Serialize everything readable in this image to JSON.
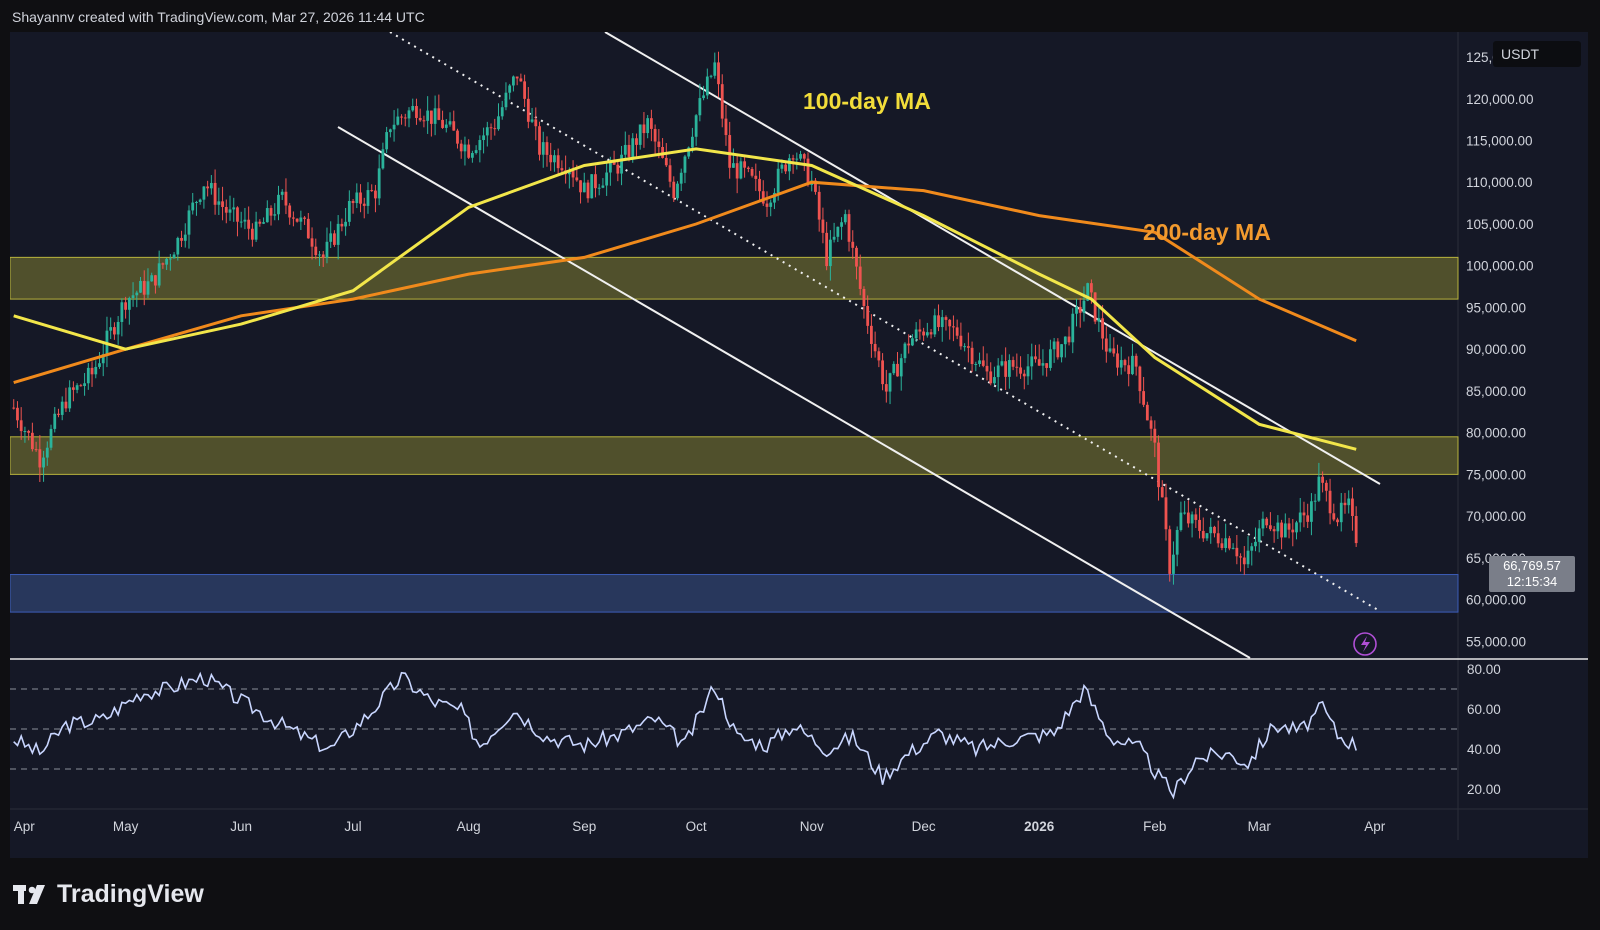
{
  "header": {
    "attribution": "Shayannv created with TradingView.com, Mar 27, 2026 11:44 UTC"
  },
  "chart_data": {
    "type": "candlestick",
    "symbol_currency": "USDT",
    "current_price": {
      "value": "66,769.57",
      "countdown": "12:15:34"
    },
    "y_axis": {
      "range": [
        53000,
        128000
      ],
      "ticks": [
        "125,000.00",
        "120,000.00",
        "115,000.00",
        "110,000.00",
        "105,000.00",
        "100,000.00",
        "95,000.00",
        "90,000.00",
        "85,000.00",
        "80,000.00",
        "75,000.00",
        "70,000.00",
        "65,000.00",
        "60,000.00",
        "55,000.00"
      ]
    },
    "x_axis": {
      "ticks": [
        "Apr",
        "May",
        "Jun",
        "Jul",
        "Aug",
        "Sep",
        "Oct",
        "Nov",
        "Dec",
        "2026",
        "Feb",
        "Mar",
        "Apr"
      ]
    },
    "price_path": [
      [
        "2025-04-01",
        83000
      ],
      [
        "2025-04-08",
        77000
      ],
      [
        "2025-04-15",
        84000
      ],
      [
        "2025-04-22",
        87000
      ],
      [
        "2025-05-01",
        96000
      ],
      [
        "2025-05-08",
        98000
      ],
      [
        "2025-05-15",
        103000
      ],
      [
        "2025-05-22",
        110000
      ],
      [
        "2025-05-29",
        106000
      ],
      [
        "2025-06-05",
        104000
      ],
      [
        "2025-06-12",
        108000
      ],
      [
        "2025-06-19",
        104000
      ],
      [
        "2025-06-23",
        101000
      ],
      [
        "2025-06-30",
        107000
      ],
      [
        "2025-07-07",
        109000
      ],
      [
        "2025-07-11",
        117000
      ],
      [
        "2025-07-18",
        119000
      ],
      [
        "2025-07-25",
        117000
      ],
      [
        "2025-08-01",
        114000
      ],
      [
        "2025-08-08",
        117000
      ],
      [
        "2025-08-14",
        123000
      ],
      [
        "2025-08-20",
        114000
      ],
      [
        "2025-08-28",
        112000
      ],
      [
        "2025-09-01",
        109000
      ],
      [
        "2025-09-10",
        112000
      ],
      [
        "2025-09-18",
        117000
      ],
      [
        "2025-09-25",
        109000
      ],
      [
        "2025-10-01",
        118000
      ],
      [
        "2025-10-06",
        124000
      ],
      [
        "2025-10-10",
        112000
      ],
      [
        "2025-10-14",
        111000
      ],
      [
        "2025-10-20",
        108000
      ],
      [
        "2025-10-27",
        114000
      ],
      [
        "2025-11-01",
        110000
      ],
      [
        "2025-11-05",
        101000
      ],
      [
        "2025-11-10",
        106000
      ],
      [
        "2025-11-15",
        95000
      ],
      [
        "2025-11-21",
        85000
      ],
      [
        "2025-11-27",
        91000
      ],
      [
        "2025-12-03",
        93000
      ],
      [
        "2025-12-10",
        92000
      ],
      [
        "2025-12-18",
        87000
      ],
      [
        "2025-12-25",
        88000
      ],
      [
        "2026-01-01",
        88000
      ],
      [
        "2026-01-08",
        91000
      ],
      [
        "2026-01-14",
        97000
      ],
      [
        "2026-01-20",
        89000
      ],
      [
        "2026-01-27",
        88000
      ],
      [
        "2026-02-01",
        78000
      ],
      [
        "2026-02-05",
        64000
      ],
      [
        "2026-02-08",
        70000
      ],
      [
        "2026-02-15",
        68000
      ],
      [
        "2026-02-22",
        67000
      ],
      [
        "2026-02-25",
        64000
      ],
      [
        "2026-03-03",
        70000
      ],
      [
        "2026-03-08",
        68000
      ],
      [
        "2026-03-15",
        71000
      ],
      [
        "2026-03-17",
        74000
      ],
      [
        "2026-03-22",
        70000
      ],
      [
        "2026-03-25",
        71000
      ],
      [
        "2026-03-27",
        66769.57
      ]
    ],
    "ma100": [
      [
        "2025-04-01",
        94000
      ],
      [
        "2025-05-01",
        90000
      ],
      [
        "2025-06-01",
        93000
      ],
      [
        "2025-07-01",
        97000
      ],
      [
        "2025-08-01",
        107000
      ],
      [
        "2025-09-01",
        112000
      ],
      [
        "2025-10-01",
        114000
      ],
      [
        "2025-11-01",
        112000
      ],
      [
        "2025-12-01",
        106000
      ],
      [
        "2026-01-01",
        99000
      ],
      [
        "2026-01-15",
        96000
      ],
      [
        "2026-02-01",
        89000
      ],
      [
        "2026-03-01",
        81000
      ],
      [
        "2026-03-27",
        78000
      ]
    ],
    "ma200": [
      [
        "2025-04-01",
        86000
      ],
      [
        "2025-05-01",
        90000
      ],
      [
        "2025-06-01",
        94000
      ],
      [
        "2025-07-01",
        96000
      ],
      [
        "2025-08-01",
        99000
      ],
      [
        "2025-09-01",
        101000
      ],
      [
        "2025-10-01",
        105000
      ],
      [
        "2025-11-01",
        110000
      ],
      [
        "2025-12-01",
        109000
      ],
      [
        "2026-01-01",
        106000
      ],
      [
        "2026-02-01",
        104000
      ],
      [
        "2026-03-01",
        96000
      ],
      [
        "2026-03-27",
        91000
      ]
    ],
    "zones": [
      {
        "from": 96000,
        "to": 101000,
        "color": "#5b5b2e"
      },
      {
        "from": 75000,
        "to": 79500,
        "color": "#5b5b2e"
      },
      {
        "from": 58500,
        "to": 63000,
        "color": "#2c3d66"
      }
    ],
    "annotations": [
      {
        "text": "100-day MA",
        "color": "#f2dd3a"
      },
      {
        "text": "200-day MA",
        "color": "#f29a2e"
      }
    ],
    "rsi": {
      "ticks": [
        "80.00",
        "60.00",
        "40.00",
        "20.00"
      ],
      "levels": [
        70,
        50,
        30
      ],
      "range": [
        10,
        85
      ],
      "values": [
        [
          "2025-04-01",
          45
        ],
        [
          "2025-04-08",
          38
        ],
        [
          "2025-04-15",
          52
        ],
        [
          "2025-04-25",
          55
        ],
        [
          "2025-05-05",
          68
        ],
        [
          "2025-05-12",
          70
        ],
        [
          "2025-05-22",
          76
        ],
        [
          "2025-06-01",
          64
        ],
        [
          "2025-06-10",
          54
        ],
        [
          "2025-06-20",
          44
        ],
        [
          "2025-06-25",
          40
        ],
        [
          "2025-07-05",
          57
        ],
        [
          "2025-07-14",
          76
        ],
        [
          "2025-07-22",
          64
        ],
        [
          "2025-07-30",
          59
        ],
        [
          "2025-08-04",
          42
        ],
        [
          "2025-08-13",
          60
        ],
        [
          "2025-08-22",
          46
        ],
        [
          "2025-09-01",
          42
        ],
        [
          "2025-09-10",
          47
        ],
        [
          "2025-09-20",
          55
        ],
        [
          "2025-09-28",
          42
        ],
        [
          "2025-10-06",
          72
        ],
        [
          "2025-10-12",
          46
        ],
        [
          "2025-10-20",
          42
        ],
        [
          "2025-10-27",
          52
        ],
        [
          "2025-11-05",
          40
        ],
        [
          "2025-11-12",
          46
        ],
        [
          "2025-11-20",
          26
        ],
        [
          "2025-11-27",
          38
        ],
        [
          "2025-12-05",
          48
        ],
        [
          "2025-12-15",
          40
        ],
        [
          "2025-12-25",
          45
        ],
        [
          "2026-01-05",
          48
        ],
        [
          "2026-01-13",
          70
        ],
        [
          "2026-01-20",
          46
        ],
        [
          "2026-01-28",
          40
        ],
        [
          "2026-02-02",
          26
        ],
        [
          "2026-02-06",
          18
        ],
        [
          "2026-02-12",
          35
        ],
        [
          "2026-02-20",
          38
        ],
        [
          "2026-02-26",
          33
        ],
        [
          "2026-03-05",
          52
        ],
        [
          "2026-03-12",
          49
        ],
        [
          "2026-03-18",
          61
        ],
        [
          "2026-03-22",
          47
        ],
        [
          "2026-03-27",
          42
        ]
      ]
    }
  },
  "branding": {
    "name": "TradingView"
  }
}
